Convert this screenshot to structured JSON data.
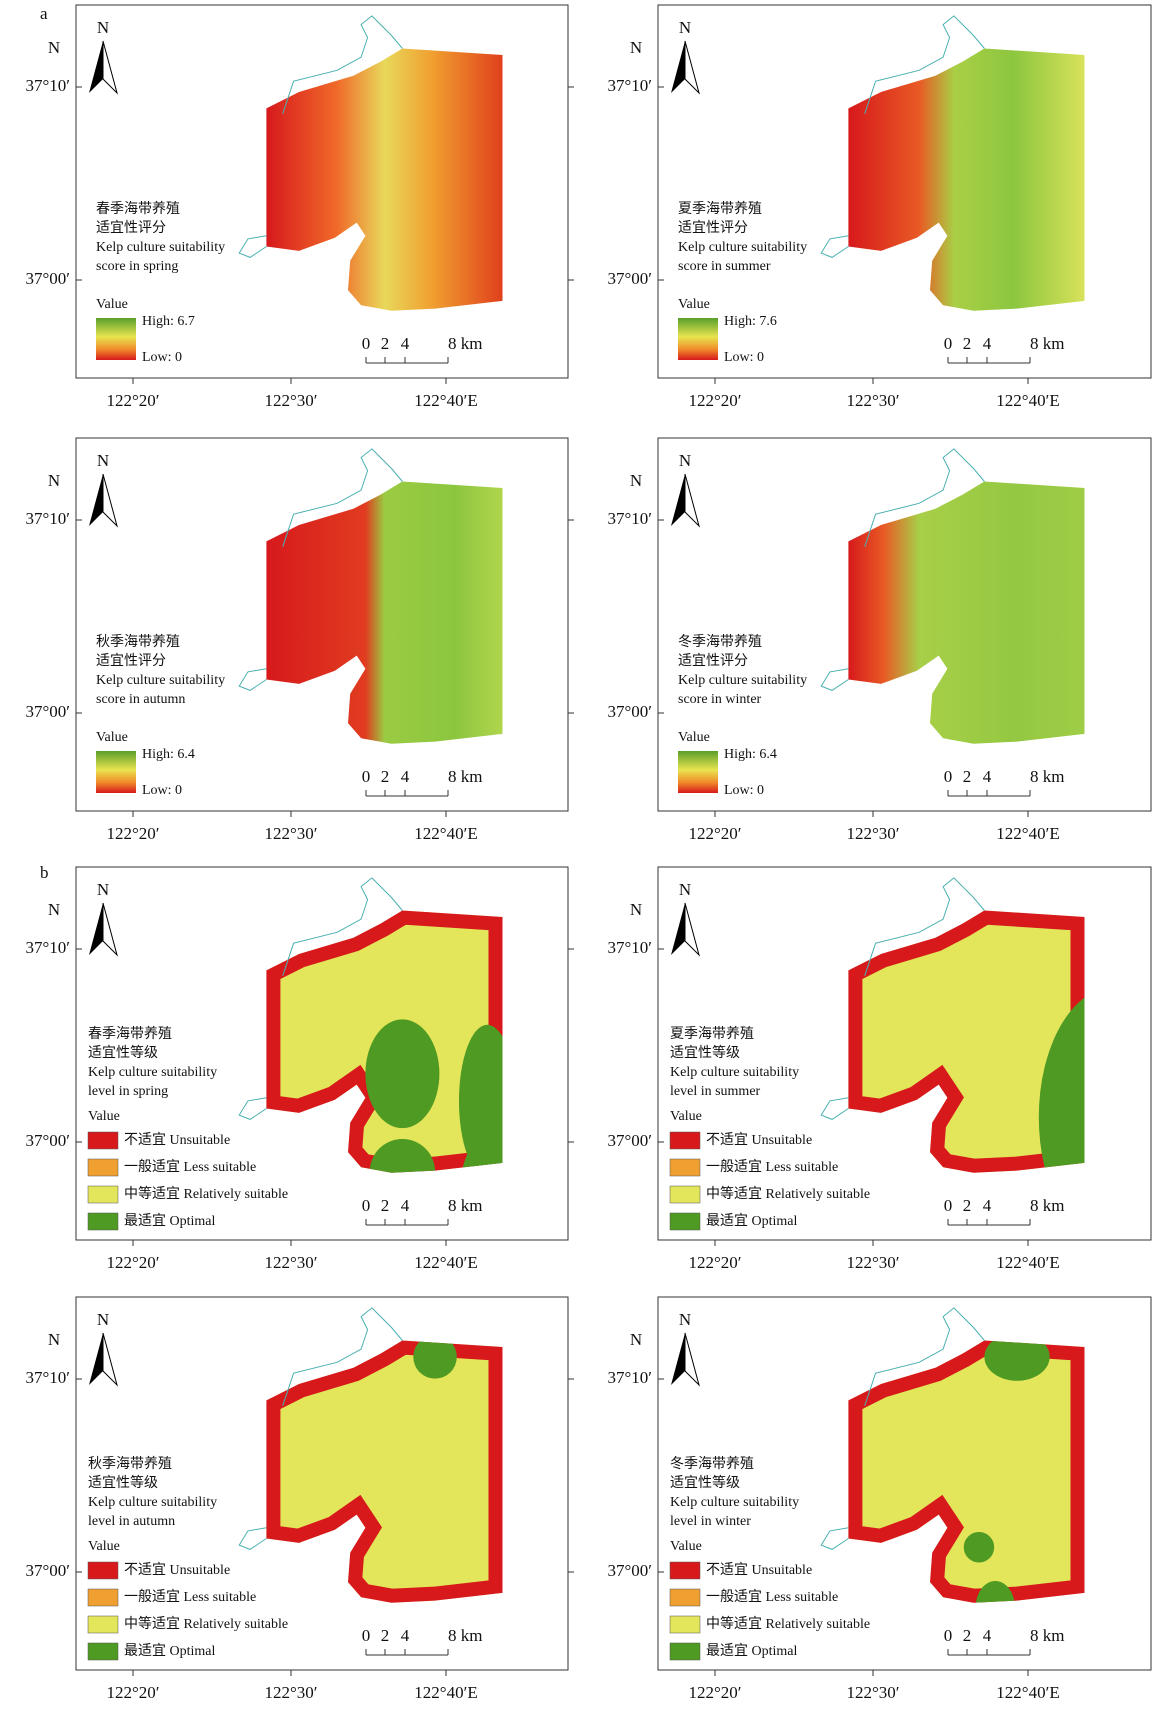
{
  "group_labels": [
    "a",
    "b"
  ],
  "north": "N",
  "lat_labels": [
    "37°10′",
    "37°00′"
  ],
  "lon_labels": [
    "122°20′",
    "122°30′",
    "122°40′E"
  ],
  "legend_value": "Value",
  "scale_bar": [
    "0",
    "2",
    "4",
    "8 km"
  ],
  "score_panels": [
    {
      "title_cn": "春季海带养殖",
      "title_cn2": "适宜性评分",
      "title_en": "Kelp culture suitability",
      "title_en2": "score in spring",
      "high": "High: 6.7",
      "low": "Low: 0"
    },
    {
      "title_cn": "夏季海带养殖",
      "title_cn2": "适宜性评分",
      "title_en": "Kelp culture suitability",
      "title_en2": "score in summer",
      "high": "High: 7.6",
      "low": "Low: 0"
    },
    {
      "title_cn": "秋季海带养殖",
      "title_cn2": "适宜性评分",
      "title_en": "Kelp culture suitability",
      "title_en2": "score in autumn",
      "high": "High: 6.4",
      "low": "Low: 0"
    },
    {
      "title_cn": "冬季海带养殖",
      "title_cn2": "适宜性评分",
      "title_en": "Kelp culture suitability",
      "title_en2": "score in winter",
      "high": "High: 6.4",
      "low": "Low: 0"
    }
  ],
  "level_panels": [
    {
      "title_cn": "春季海带养殖",
      "title_cn2": "适宜性等级",
      "title_en": "Kelp culture suitability",
      "title_en2": "level in spring"
    },
    {
      "title_cn": "夏季海带养殖",
      "title_cn2": "适宜性等级",
      "title_en": "Kelp culture suitability",
      "title_en2": "level in summer"
    },
    {
      "title_cn": "秋季海带养殖",
      "title_cn2": "适宜性等级",
      "title_en": "Kelp culture suitability",
      "title_en2": "level in autumn"
    },
    {
      "title_cn": "冬季海带养殖",
      "title_cn2": "适宜性等级",
      "title_en": "Kelp culture suitability",
      "title_en2": "level in winter"
    }
  ],
  "level_legend": [
    {
      "label": "不适宜 Unsuitable",
      "color": "#d7191c"
    },
    {
      "label": "一般适宜 Less suitable",
      "color": "#f0a030"
    },
    {
      "label": "中等适宜 Relatively suitable",
      "color": "#e3e55a"
    },
    {
      "label": "最适宜 Optimal",
      "color": "#4e9a22"
    }
  ]
}
